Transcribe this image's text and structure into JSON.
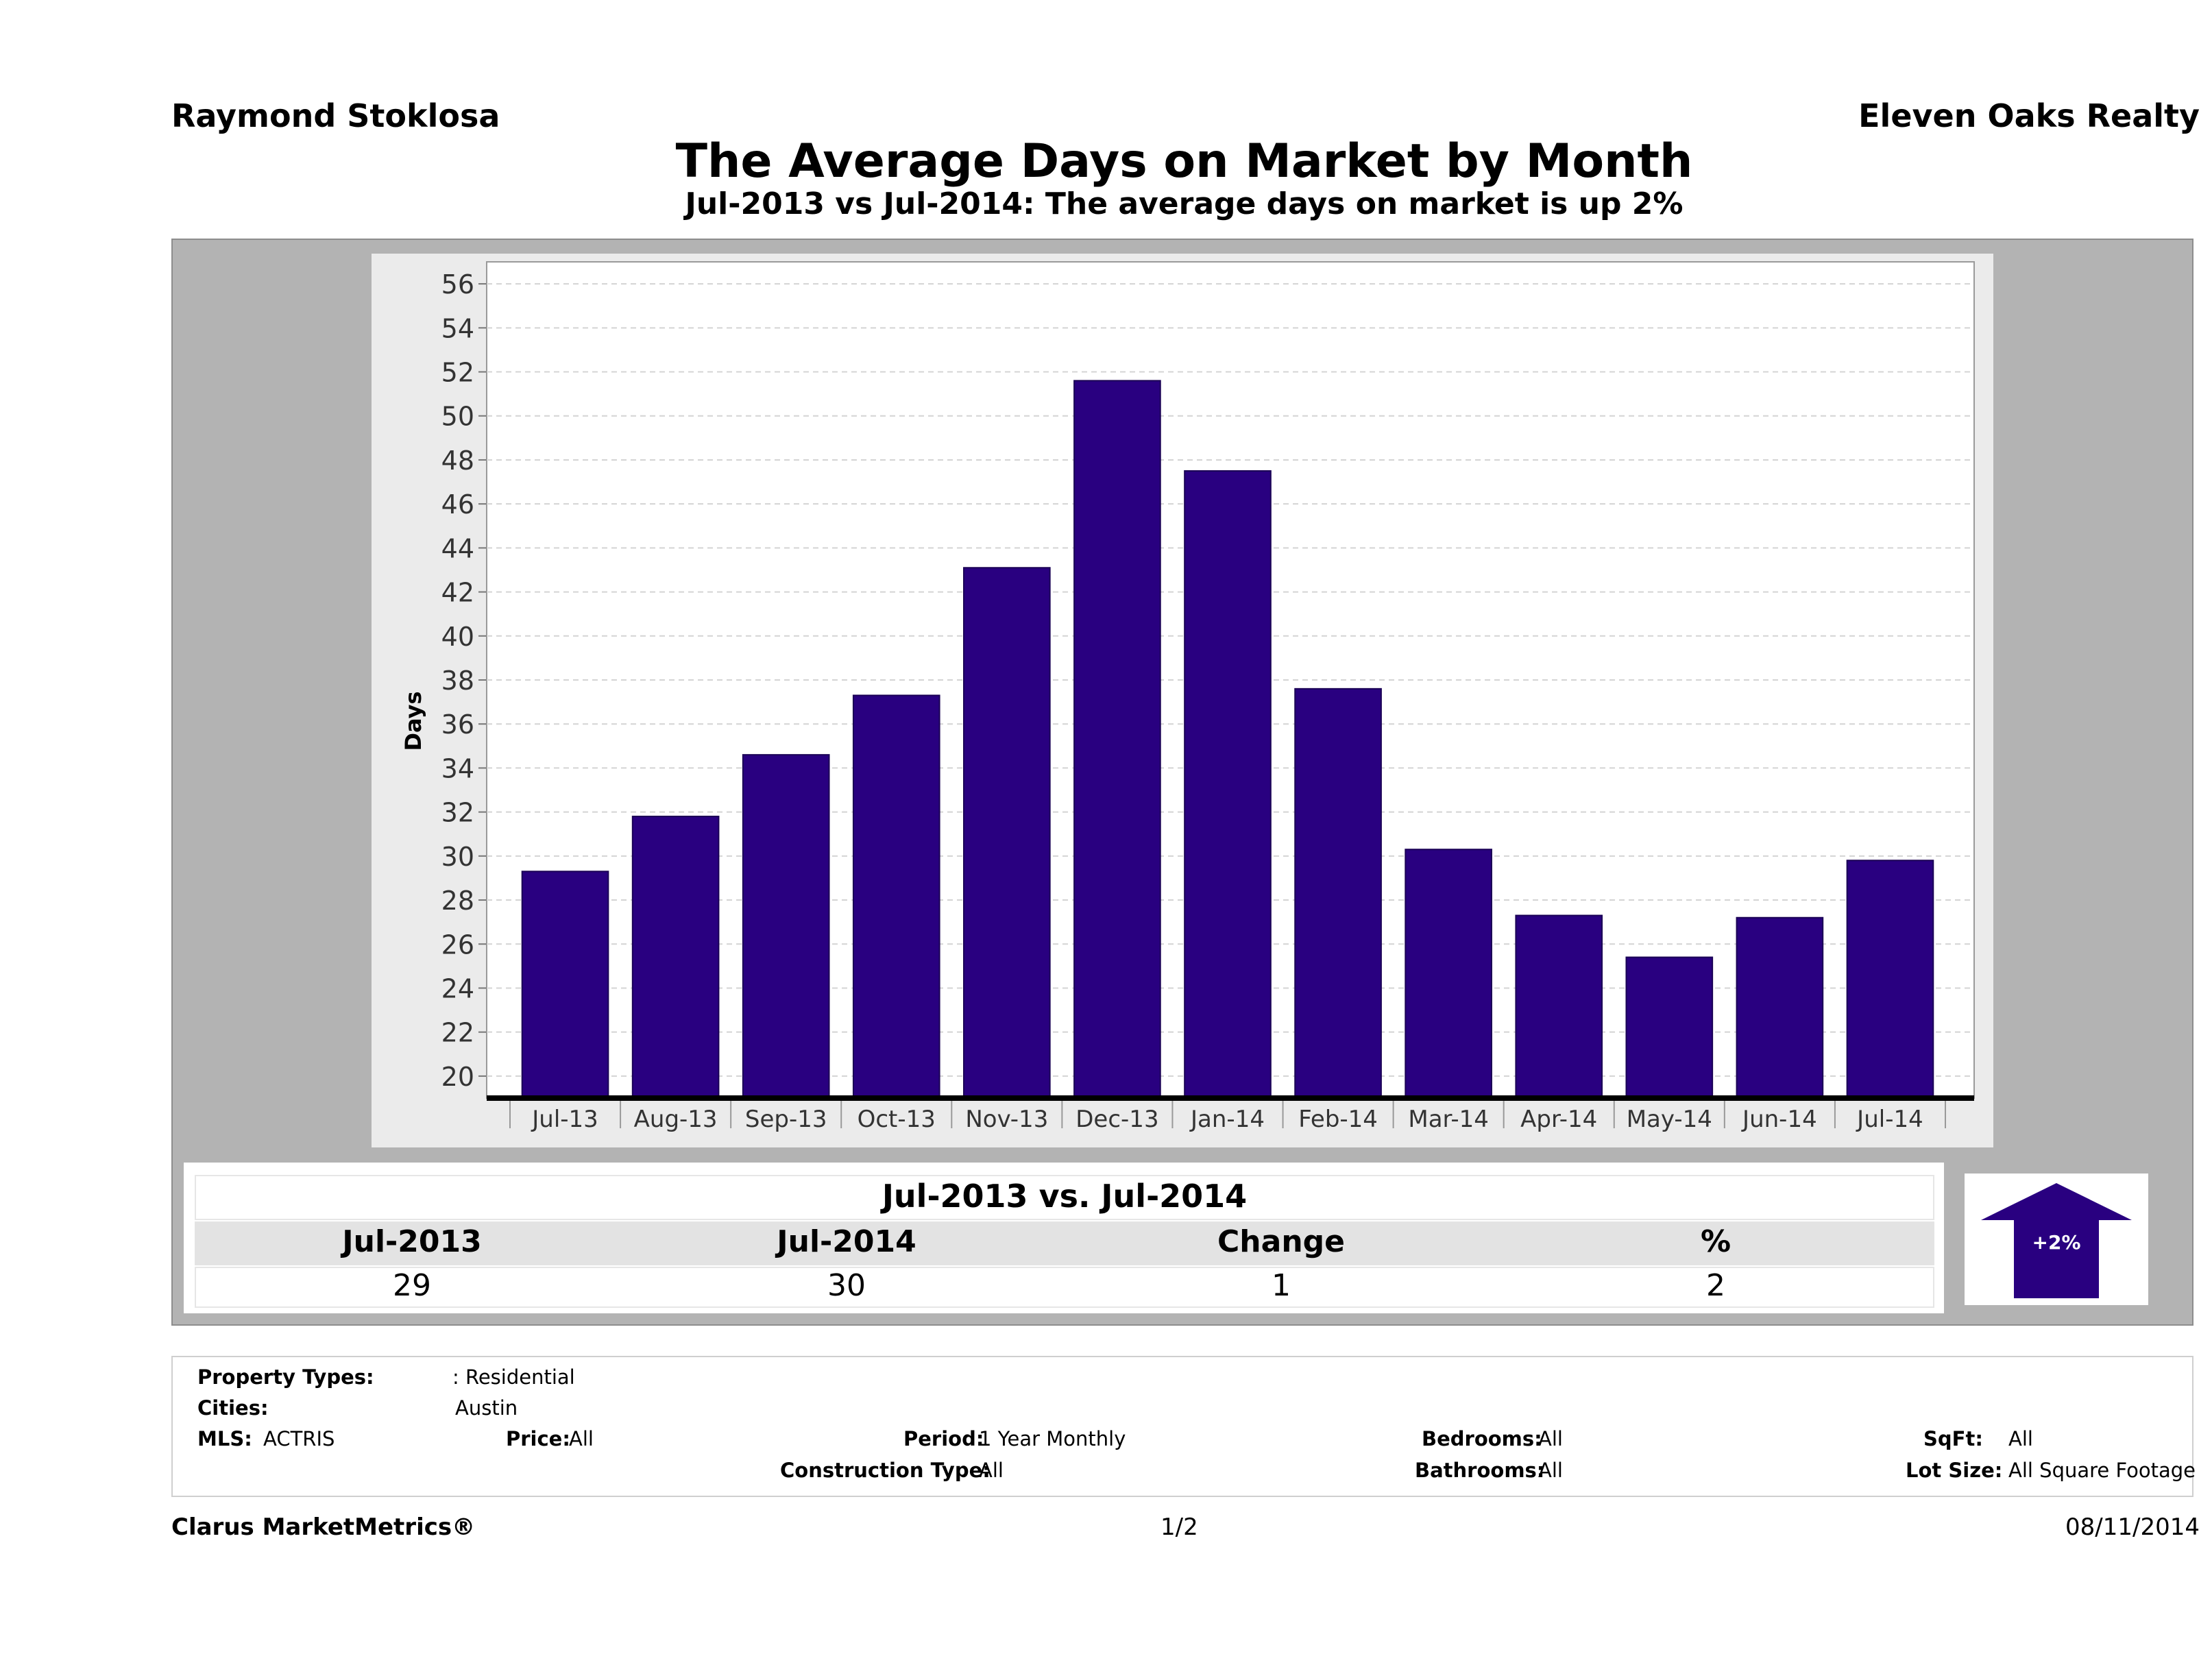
{
  "header": {
    "agent_name": "Raymond Stoklosa",
    "company": "Eleven Oaks Realty",
    "title": "The Average Days on Market by Month",
    "subtitle": "Jul-2013 vs Jul-2014: The average days on market is up 2%"
  },
  "chart_data": {
    "type": "bar",
    "ylabel": "Days",
    "xlabel": "",
    "ylim": [
      19,
      57
    ],
    "yticks": [
      20,
      22,
      24,
      26,
      28,
      30,
      32,
      34,
      36,
      38,
      40,
      42,
      44,
      46,
      48,
      50,
      52,
      54,
      56
    ],
    "grid": true,
    "categories": [
      "Jul-13",
      "Aug-13",
      "Sep-13",
      "Oct-13",
      "Nov-13",
      "Dec-13",
      "Jan-14",
      "Feb-14",
      "Mar-14",
      "Apr-14",
      "May-14",
      "Jun-14",
      "Jul-14"
    ],
    "values": [
      29.3,
      31.8,
      34.6,
      37.3,
      43.1,
      51.6,
      47.5,
      37.6,
      30.3,
      27.3,
      25.4,
      27.2,
      29.8
    ],
    "bar_color": "#290080"
  },
  "summary": {
    "title": "Jul-2013 vs. Jul-2014",
    "headers": [
      "Jul-2013",
      "Jul-2014",
      "Change",
      "%"
    ],
    "values": [
      "29",
      "30",
      "1",
      "2"
    ],
    "badge": "+2%",
    "badge_direction": "up",
    "badge_color": "#290080"
  },
  "filters": {
    "property_types_label": "Property Types:",
    "property_types_value": ": Residential",
    "cities_label": "Cities:",
    "cities_value": "Austin",
    "mls_label": "MLS:",
    "mls_value": "ACTRIS",
    "price_label": "Price:",
    "price_value": "All",
    "period_label": "Period:",
    "period_value": "1 Year Monthly",
    "construction_label": "Construction Type:",
    "construction_value": "All",
    "bedrooms_label": "Bedrooms:",
    "bedrooms_value": "All",
    "bathrooms_label": "Bathrooms:",
    "bathrooms_value": "All",
    "sqft_label": "SqFt:",
    "sqft_value": "All",
    "lotsize_label": "Lot Size:",
    "lotsize_value": "All Square Footage"
  },
  "footer": {
    "brand": "Clarus MarketMetrics®",
    "page": "1/2",
    "date": "08/11/2014"
  }
}
